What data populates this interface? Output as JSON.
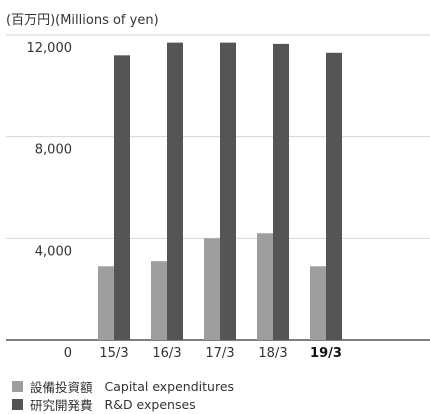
{
  "unit_label": "(百万円)(Millions of yen)",
  "chart_data": {
    "type": "bar",
    "categories": [
      "15/3",
      "16/3",
      "17/3",
      "18/3",
      "19/3"
    ],
    "highlight_category": "19/3",
    "y_ticks": [
      "0",
      "4,000",
      "8,000",
      "12,000"
    ],
    "y_tick_values": [
      0,
      4000,
      8000,
      12000
    ],
    "ylim": [
      0,
      12000
    ],
    "grid": true,
    "series": [
      {
        "name_ja": "設備投資額",
        "name": "Capital expenditures",
        "color": "#9e9e9e",
        "values": [
          2900,
          3100,
          4000,
          4200,
          2900
        ]
      },
      {
        "name_ja": "研究開発費",
        "name": "R&D expenses",
        "color": "#555555",
        "values": [
          11200,
          11700,
          11700,
          11650,
          11300
        ]
      }
    ],
    "legend_position": "bottom-left"
  }
}
